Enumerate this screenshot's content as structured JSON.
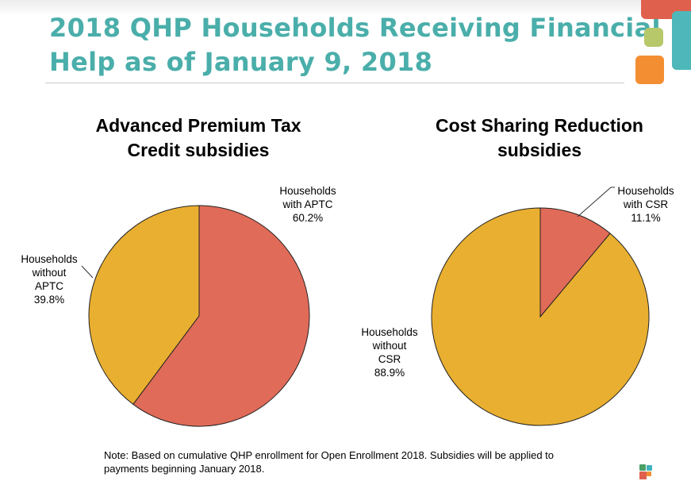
{
  "header": {
    "title_line1": "2018 QHP Households Receiving Financial",
    "title_line2": "Help as of January 9, 2018"
  },
  "colors": {
    "title": "#4AAEAA",
    "with": "#E06B58",
    "without": "#E9AF30"
  },
  "chart_data": [
    {
      "type": "pie",
      "title_line1": "Advanced Premium Tax",
      "title_line2": "Credit subsidies",
      "slices": [
        {
          "label_lines": [
            "Households",
            "with APTC"
          ],
          "value": 60.2,
          "value_label": "60.2%",
          "color": "#E06B58"
        },
        {
          "label_lines": [
            "Households",
            "without",
            "APTC"
          ],
          "value": 39.8,
          "value_label": "39.8%",
          "color": "#E9AF30"
        }
      ]
    },
    {
      "type": "pie",
      "title_line1": "Cost Sharing Reduction",
      "title_line2": "subsidies",
      "slices": [
        {
          "label_lines": [
            "Households",
            "with CSR"
          ],
          "value": 11.1,
          "value_label": "11.1%",
          "color": "#E06B58"
        },
        {
          "label_lines": [
            "Households",
            "without",
            "CSR"
          ],
          "value": 88.9,
          "value_label": "88.9%",
          "color": "#E9AF30"
        }
      ]
    }
  ],
  "note": {
    "line1": "Note:  Based on cumulative QHP enrollment for Open Enrollment 2018. Subsidies will be applied to",
    "line2": "payments beginning January 2018."
  }
}
